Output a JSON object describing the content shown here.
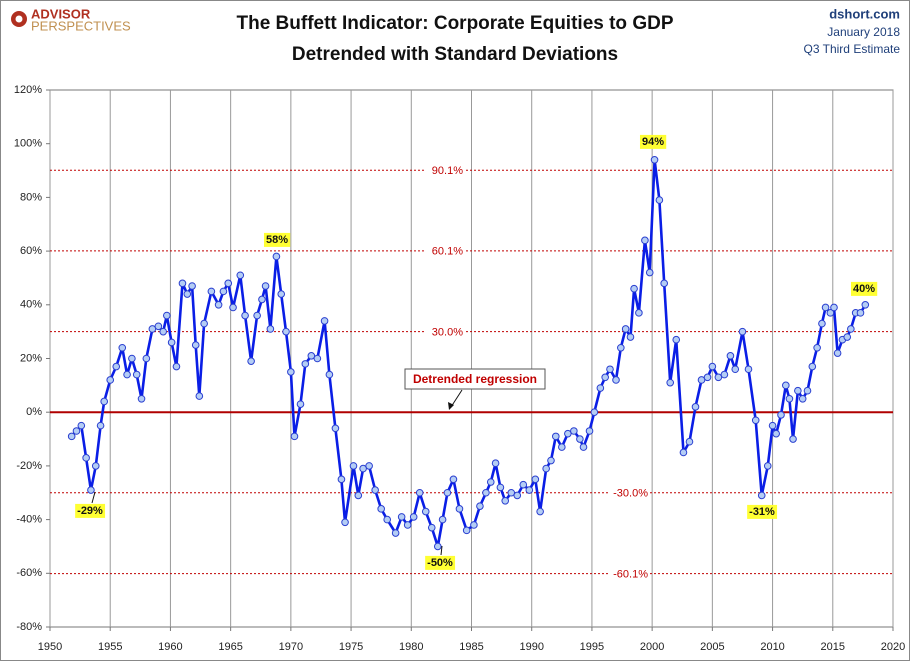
{
  "chart_data": {
    "type": "line",
    "logo": [
      "ADVISOR",
      "PERSPECTIVES"
    ],
    "title": "The Buffett Indicator: Corporate Equities to GDP",
    "subtitle": "Detrended with Standard Deviations",
    "source": [
      "dshort.com",
      "January 2018",
      "Q3 Third Estimate"
    ],
    "x": [
      1951.8,
      1952.2,
      1952.6,
      1953.0,
      1953.4,
      1953.8,
      1954.2,
      1954.5,
      1955.0,
      1955.5,
      1956.0,
      1956.4,
      1956.8,
      1957.2,
      1957.6,
      1958.0,
      1958.5,
      1959.0,
      1959.4,
      1959.7,
      1960.1,
      1960.5,
      1961.0,
      1961.4,
      1961.8,
      1962.1,
      1962.4,
      1962.8,
      1963.4,
      1964.0,
      1964.4,
      1964.8,
      1965.2,
      1965.8,
      1966.2,
      1966.7,
      1967.2,
      1967.6,
      1967.9,
      1968.3,
      1968.8,
      1969.2,
      1969.6,
      1970.0,
      1970.3,
      1970.8,
      1971.2,
      1971.7,
      1972.2,
      1972.8,
      1973.2,
      1973.7,
      1974.2,
      1974.5,
      1975.2,
      1975.6,
      1976.0,
      1976.5,
      1977.0,
      1977.5,
      1978.0,
      1978.7,
      1979.2,
      1979.7,
      1980.2,
      1980.7,
      1981.2,
      1981.7,
      1982.2,
      1982.6,
      1983.0,
      1983.5,
      1984.0,
      1984.6,
      1985.2,
      1985.7,
      1986.2,
      1986.6,
      1987.0,
      1987.4,
      1987.8,
      1988.3,
      1988.8,
      1989.3,
      1989.8,
      1990.3,
      1990.7,
      1991.2,
      1991.6,
      1992.0,
      1992.5,
      1993.0,
      1993.5,
      1994.0,
      1994.3,
      1994.8,
      1995.2,
      1995.7,
      1996.1,
      1996.5,
      1997.0,
      1997.4,
      1997.8,
      1998.2,
      1998.5,
      1998.9,
      1999.4,
      1999.8,
      2000.2,
      2000.6,
      2001.0,
      2001.5,
      2002.0,
      2002.6,
      2003.1,
      2003.6,
      2004.1,
      2004.6,
      2005.0,
      2005.5,
      2006.0,
      2006.5,
      2006.9,
      2007.5,
      2008.0,
      2008.6,
      2009.1,
      2009.6,
      2010.0,
      2010.3,
      2010.7,
      2011.1,
      2011.4,
      2011.7,
      2012.1,
      2012.5,
      2012.9,
      2013.3,
      2013.7,
      2014.1,
      2014.4,
      2014.8,
      2015.1,
      2015.4,
      2015.8,
      2016.2,
      2016.5,
      2016.9,
      2017.3,
      2017.7
    ],
    "series": [
      {
        "color": "#0a1ee6",
        "values": [
          -9,
          -7,
          -5,
          -17,
          -29,
          -20,
          -5,
          4,
          12,
          17,
          24,
          14,
          20,
          14,
          5,
          20,
          31,
          32,
          30,
          36,
          26,
          17,
          48,
          44,
          47,
          25,
          6,
          33,
          45,
          40,
          45,
          48,
          39,
          51,
          36,
          19,
          36,
          42,
          47,
          31,
          58,
          44,
          30,
          15,
          -9,
          3,
          18,
          21,
          20,
          34,
          14,
          -6,
          -25,
          -41,
          -20,
          -31,
          -21,
          -20,
          -29,
          -36,
          -40,
          -45,
          -39,
          -42,
          -39,
          -30,
          -37,
          -43,
          -50,
          -40,
          -30,
          -25,
          -36,
          -44,
          -42,
          -35,
          -30,
          -26,
          -19,
          -28,
          -33,
          -30,
          -31,
          -27,
          -29,
          -25,
          -37,
          -21,
          -18,
          -9,
          -13,
          -8,
          -7,
          -10,
          -13,
          -7,
          0,
          9,
          13,
          16,
          12,
          24,
          31,
          28,
          46,
          37,
          64,
          52,
          94,
          79,
          48,
          11,
          27,
          -15,
          -11,
          2,
          12,
          13,
          17,
          13,
          14,
          21,
          16,
          30,
          16,
          -3,
          -31,
          -20,
          -5,
          -8,
          -1,
          10,
          5,
          -10,
          8,
          5,
          8,
          17,
          24,
          33,
          39,
          37,
          39,
          22,
          27,
          28,
          31,
          37,
          37,
          40
        ]
      }
    ],
    "xlim": [
      1950,
      2020
    ],
    "xticks": [
      1950,
      1955,
      1960,
      1965,
      1970,
      1975,
      1980,
      1985,
      1990,
      1995,
      2000,
      2005,
      2010,
      2015,
      2020
    ],
    "ylim": [
      -80,
      120
    ],
    "yticks": [
      {
        "value": -80,
        "label": "-80%"
      },
      {
        "value": -60,
        "label": "-60%"
      },
      {
        "value": -40,
        "label": "-40%"
      },
      {
        "value": -20,
        "label": "-20%"
      },
      {
        "value": 0,
        "label": "0%"
      },
      {
        "value": 20,
        "label": "20%"
      },
      {
        "value": 40,
        "label": "40%"
      },
      {
        "value": 60,
        "label": "60%"
      },
      {
        "value": 80,
        "label": "80%"
      },
      {
        "value": 100,
        "label": "100%"
      },
      {
        "value": 120,
        "label": "120%"
      }
    ],
    "grid": "x",
    "reference_lines": [
      {
        "value": 90.1,
        "label": "90.1%"
      },
      {
        "value": 60.1,
        "label": "60.1%"
      },
      {
        "value": 30.0,
        "label": "30.0%"
      },
      {
        "value": -30.0,
        "label": "-30.0%"
      },
      {
        "value": -60.1,
        "label": "-60.1%"
      }
    ],
    "regression_line": {
      "value": 0,
      "label": "Detrended regression"
    },
    "annotations": [
      "-29%",
      "58%",
      "-50%",
      "94%",
      "-31%",
      "40%"
    ]
  }
}
